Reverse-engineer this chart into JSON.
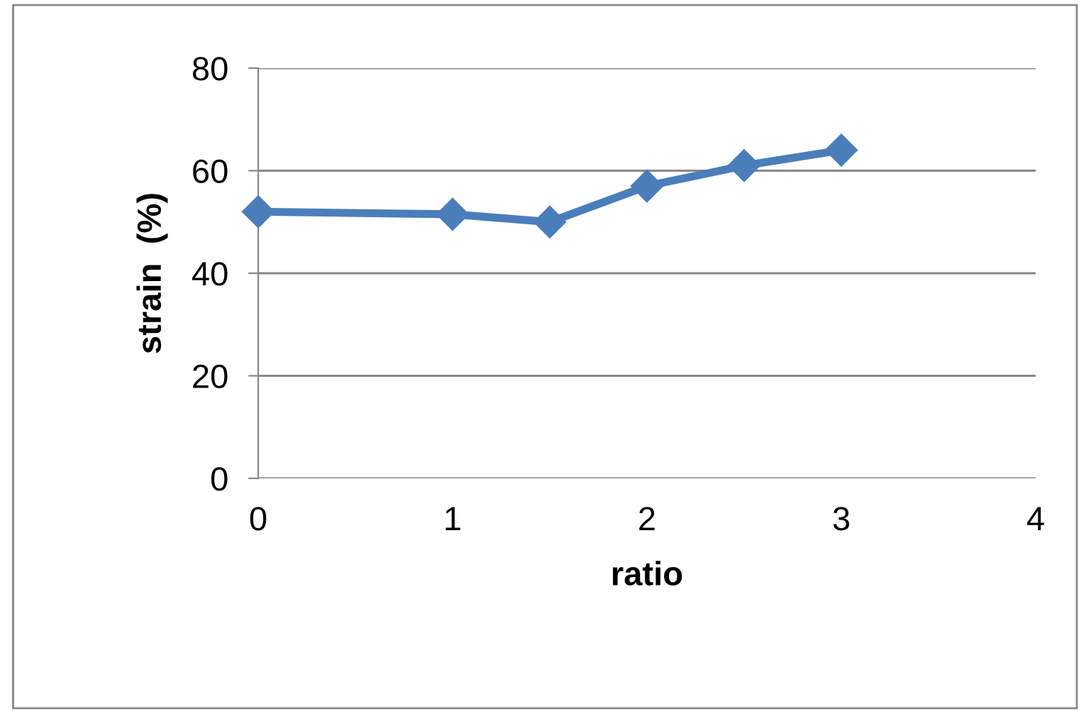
{
  "chart_data": {
    "type": "line",
    "xlabel": "ratio",
    "ylabel": "strain  (%)",
    "x": [
      0,
      1,
      1.5,
      2,
      2.5,
      3
    ],
    "series": [
      {
        "color": "#4a7ebb",
        "values": [
          52,
          51.5,
          50,
          57,
          61,
          64
        ]
      }
    ],
    "xlim": [
      0,
      4
    ],
    "xticks": [
      0,
      1,
      2,
      3,
      4
    ],
    "ylim": [
      0,
      80
    ],
    "yticks": [
      0,
      20,
      40,
      60,
      80
    ],
    "grid": "y",
    "marker": "diamond",
    "line_style": "solid"
  }
}
